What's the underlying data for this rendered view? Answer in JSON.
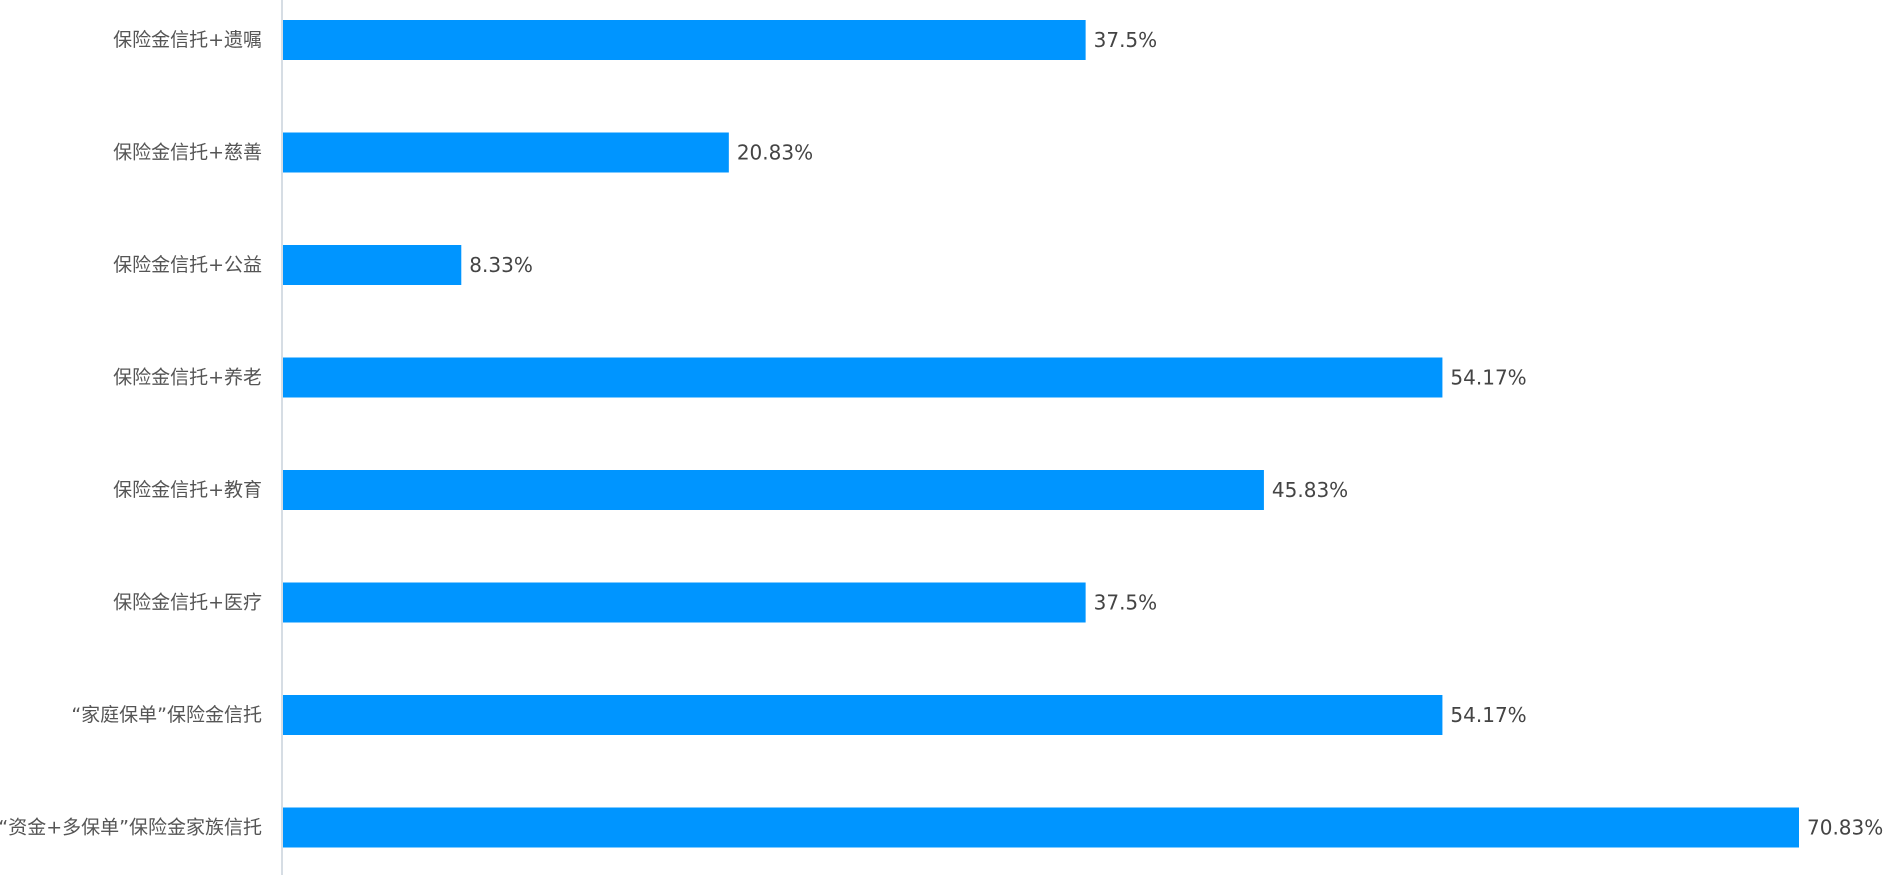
{
  "chart_data": {
    "type": "bar",
    "orientation": "horizontal",
    "categories": [
      "保险金信托+遗嘱",
      "保险金信托+慈善",
      "保险金信托+公益",
      "保险金信托+养老",
      "保险金信托+教育",
      "保险金信托+医疗",
      "“家庭保单”保险金信托",
      "“资金+多保单”保险金家族信托"
    ],
    "values": [
      37.5,
      20.83,
      8.33,
      54.17,
      45.83,
      37.5,
      54.17,
      70.83
    ],
    "data_labels": [
      "37.5%",
      "20.83%",
      "8.33%",
      "54.17%",
      "45.83%",
      "37.5%",
      "54.17%",
      "70.83%"
    ],
    "xlim": [
      0,
      70.83
    ],
    "title": "",
    "xlabel": "",
    "ylabel": "",
    "grid": false,
    "legend": "none",
    "colors": {
      "bar": "#0095FF",
      "axis": "#C8D2DC",
      "category_text": "#555555",
      "value_text": "#444444"
    }
  }
}
